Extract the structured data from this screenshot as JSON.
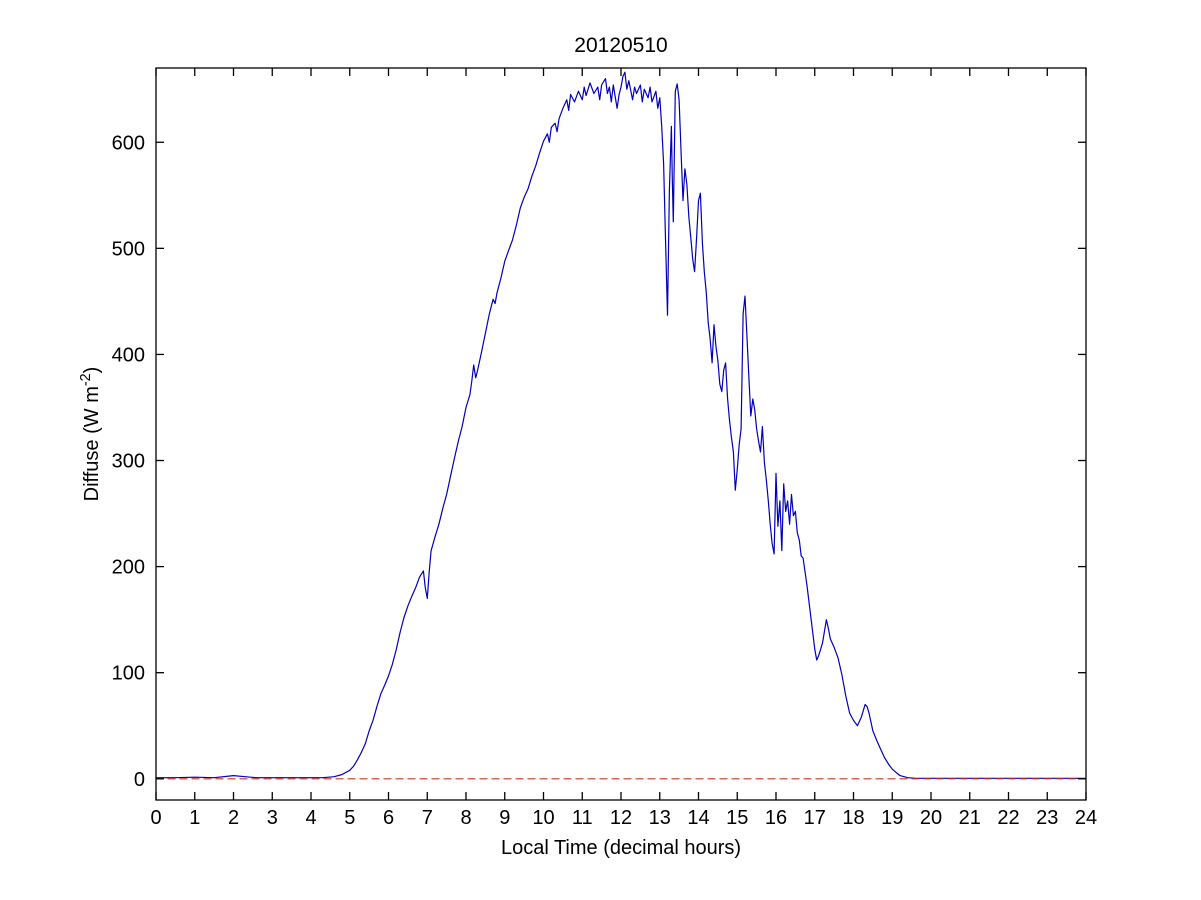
{
  "chart_data": {
    "type": "line",
    "title": "20120510",
    "xlabel": "Local Time (decimal hours)",
    "ylabel_prefix": "Diffuse (W m",
    "ylabel_sup": "-2",
    "ylabel_suffix": ")",
    "xlim": [
      0,
      24
    ],
    "ylim": [
      -20,
      670
    ],
    "xticks": [
      0,
      1,
      2,
      3,
      4,
      5,
      6,
      7,
      8,
      9,
      10,
      11,
      12,
      13,
      14,
      15,
      16,
      17,
      18,
      19,
      20,
      21,
      22,
      23,
      24
    ],
    "yticks": [
      0,
      100,
      200,
      300,
      400,
      500,
      600
    ],
    "grid": false,
    "legend": "none",
    "colors": {
      "diffuse_line": "#0000bb",
      "zero_dashed_line": "#cc3322",
      "axis": "#000000",
      "background": "#ffffff"
    },
    "series": [
      {
        "name": "diffuse",
        "style": "solid",
        "points": [
          [
            0,
            1
          ],
          [
            0.5,
            1
          ],
          [
            1,
            1.5
          ],
          [
            1.5,
            1
          ],
          [
            2,
            3
          ],
          [
            2.3,
            2
          ],
          [
            2.6,
            1
          ],
          [
            3,
            1
          ],
          [
            3.5,
            1
          ],
          [
            4,
            1
          ],
          [
            4.3,
            1
          ],
          [
            4.6,
            2
          ],
          [
            4.8,
            4
          ],
          [
            5.0,
            8
          ],
          [
            5.1,
            12
          ],
          [
            5.2,
            18
          ],
          [
            5.3,
            25
          ],
          [
            5.4,
            33
          ],
          [
            5.5,
            45
          ],
          [
            5.6,
            55
          ],
          [
            5.7,
            68
          ],
          [
            5.8,
            80
          ],
          [
            5.9,
            88
          ],
          [
            6.0,
            97
          ],
          [
            6.1,
            108
          ],
          [
            6.2,
            122
          ],
          [
            6.3,
            138
          ],
          [
            6.4,
            152
          ],
          [
            6.5,
            163
          ],
          [
            6.6,
            172
          ],
          [
            6.7,
            180
          ],
          [
            6.8,
            190
          ],
          [
            6.9,
            196
          ],
          [
            6.95,
            180
          ],
          [
            7.0,
            170
          ],
          [
            7.05,
            195
          ],
          [
            7.1,
            215
          ],
          [
            7.2,
            228
          ],
          [
            7.3,
            240
          ],
          [
            7.4,
            255
          ],
          [
            7.5,
            268
          ],
          [
            7.6,
            285
          ],
          [
            7.7,
            302
          ],
          [
            7.8,
            318
          ],
          [
            7.9,
            332
          ],
          [
            8.0,
            350
          ],
          [
            8.1,
            362
          ],
          [
            8.15,
            375
          ],
          [
            8.2,
            390
          ],
          [
            8.25,
            378
          ],
          [
            8.3,
            385
          ],
          [
            8.4,
            402
          ],
          [
            8.5,
            420
          ],
          [
            8.6,
            438
          ],
          [
            8.7,
            452
          ],
          [
            8.75,
            448
          ],
          [
            8.8,
            458
          ],
          [
            8.9,
            472
          ],
          [
            9.0,
            488
          ],
          [
            9.1,
            498
          ],
          [
            9.2,
            508
          ],
          [
            9.3,
            522
          ],
          [
            9.4,
            538
          ],
          [
            9.5,
            548
          ],
          [
            9.6,
            556
          ],
          [
            9.7,
            568
          ],
          [
            9.8,
            578
          ],
          [
            9.9,
            590
          ],
          [
            10.0,
            601
          ],
          [
            10.1,
            608
          ],
          [
            10.15,
            600
          ],
          [
            10.2,
            614
          ],
          [
            10.3,
            618
          ],
          [
            10.35,
            610
          ],
          [
            10.4,
            622
          ],
          [
            10.5,
            632
          ],
          [
            10.6,
            640
          ],
          [
            10.65,
            630
          ],
          [
            10.7,
            645
          ],
          [
            10.8,
            638
          ],
          [
            10.9,
            648
          ],
          [
            11.0,
            640
          ],
          [
            11.05,
            652
          ],
          [
            11.1,
            644
          ],
          [
            11.2,
            656
          ],
          [
            11.3,
            646
          ],
          [
            11.4,
            652
          ],
          [
            11.45,
            640
          ],
          [
            11.5,
            654
          ],
          [
            11.6,
            660
          ],
          [
            11.65,
            646
          ],
          [
            11.7,
            652
          ],
          [
            11.75,
            638
          ],
          [
            11.8,
            654
          ],
          [
            11.9,
            632
          ],
          [
            11.95,
            645
          ],
          [
            12.0,
            652
          ],
          [
            12.05,
            662
          ],
          [
            12.1,
            666
          ],
          [
            12.15,
            650
          ],
          [
            12.2,
            658
          ],
          [
            12.3,
            640
          ],
          [
            12.35,
            652
          ],
          [
            12.4,
            646
          ],
          [
            12.5,
            654
          ],
          [
            12.55,
            638
          ],
          [
            12.6,
            650
          ],
          [
            12.7,
            642
          ],
          [
            12.75,
            652
          ],
          [
            12.8,
            638
          ],
          [
            12.9,
            648
          ],
          [
            12.95,
            632
          ],
          [
            13.0,
            642
          ],
          [
            13.05,
            615
          ],
          [
            13.1,
            580
          ],
          [
            13.15,
            505
          ],
          [
            13.2,
            437
          ],
          [
            13.25,
            555
          ],
          [
            13.3,
            615
          ],
          [
            13.32,
            570
          ],
          [
            13.35,
            525
          ],
          [
            13.4,
            648
          ],
          [
            13.45,
            655
          ],
          [
            13.5,
            640
          ],
          [
            13.55,
            590
          ],
          [
            13.6,
            545
          ],
          [
            13.65,
            575
          ],
          [
            13.7,
            560
          ],
          [
            13.75,
            530
          ],
          [
            13.8,
            510
          ],
          [
            13.85,
            490
          ],
          [
            13.9,
            478
          ],
          [
            13.95,
            510
          ],
          [
            14.0,
            545
          ],
          [
            14.05,
            552
          ],
          [
            14.1,
            505
          ],
          [
            14.15,
            478
          ],
          [
            14.2,
            458
          ],
          [
            14.25,
            430
          ],
          [
            14.3,
            415
          ],
          [
            14.35,
            392
          ],
          [
            14.4,
            428
          ],
          [
            14.45,
            408
          ],
          [
            14.5,
            394
          ],
          [
            14.55,
            372
          ],
          [
            14.6,
            365
          ],
          [
            14.65,
            385
          ],
          [
            14.7,
            392
          ],
          [
            14.75,
            358
          ],
          [
            14.8,
            338
          ],
          [
            14.85,
            322
          ],
          [
            14.9,
            308
          ],
          [
            14.95,
            272
          ],
          [
            15.0,
            292
          ],
          [
            15.05,
            315
          ],
          [
            15.1,
            330
          ],
          [
            15.15,
            438
          ],
          [
            15.2,
            455
          ],
          [
            15.25,
            418
          ],
          [
            15.3,
            378
          ],
          [
            15.35,
            342
          ],
          [
            15.4,
            358
          ],
          [
            15.45,
            348
          ],
          [
            15.5,
            330
          ],
          [
            15.55,
            318
          ],
          [
            15.6,
            308
          ],
          [
            15.65,
            332
          ],
          [
            15.7,
            298
          ],
          [
            15.75,
            282
          ],
          [
            15.8,
            262
          ],
          [
            15.85,
            240
          ],
          [
            15.9,
            222
          ],
          [
            15.95,
            212
          ],
          [
            16.0,
            288
          ],
          [
            16.05,
            238
          ],
          [
            16.1,
            262
          ],
          [
            16.15,
            215
          ],
          [
            16.2,
            278
          ],
          [
            16.25,
            252
          ],
          [
            16.3,
            262
          ],
          [
            16.35,
            240
          ],
          [
            16.4,
            268
          ],
          [
            16.45,
            248
          ],
          [
            16.5,
            252
          ],
          [
            16.55,
            232
          ],
          [
            16.6,
            225
          ],
          [
            16.65,
            210
          ],
          [
            16.7,
            208
          ],
          [
            16.8,
            182
          ],
          [
            16.9,
            152
          ],
          [
            17.0,
            122
          ],
          [
            17.05,
            112
          ],
          [
            17.1,
            116
          ],
          [
            17.15,
            122
          ],
          [
            17.2,
            128
          ],
          [
            17.3,
            150
          ],
          [
            17.35,
            142
          ],
          [
            17.4,
            132
          ],
          [
            17.45,
            128
          ],
          [
            17.5,
            124
          ],
          [
            17.6,
            114
          ],
          [
            17.7,
            98
          ],
          [
            17.8,
            78
          ],
          [
            17.9,
            62
          ],
          [
            18.0,
            55
          ],
          [
            18.1,
            50
          ],
          [
            18.2,
            58
          ],
          [
            18.3,
            70
          ],
          [
            18.35,
            68
          ],
          [
            18.4,
            62
          ],
          [
            18.5,
            45
          ],
          [
            18.6,
            36
          ],
          [
            18.7,
            28
          ],
          [
            18.8,
            20
          ],
          [
            18.9,
            14
          ],
          [
            19.0,
            9
          ],
          [
            19.1,
            6
          ],
          [
            19.2,
            3
          ],
          [
            19.4,
            1
          ],
          [
            19.6,
            0.5
          ],
          [
            20.0,
            0.5
          ],
          [
            20.5,
            0.5
          ],
          [
            21.0,
            0.5
          ],
          [
            21.5,
            0.5
          ],
          [
            22.0,
            0.5
          ],
          [
            22.5,
            0.5
          ],
          [
            23.0,
            0.5
          ],
          [
            23.5,
            0.5
          ],
          [
            24.0,
            0.5
          ]
        ]
      },
      {
        "name": "zero-line",
        "style": "dashed",
        "points": [
          [
            0,
            0
          ],
          [
            24,
            0
          ]
        ]
      }
    ]
  }
}
